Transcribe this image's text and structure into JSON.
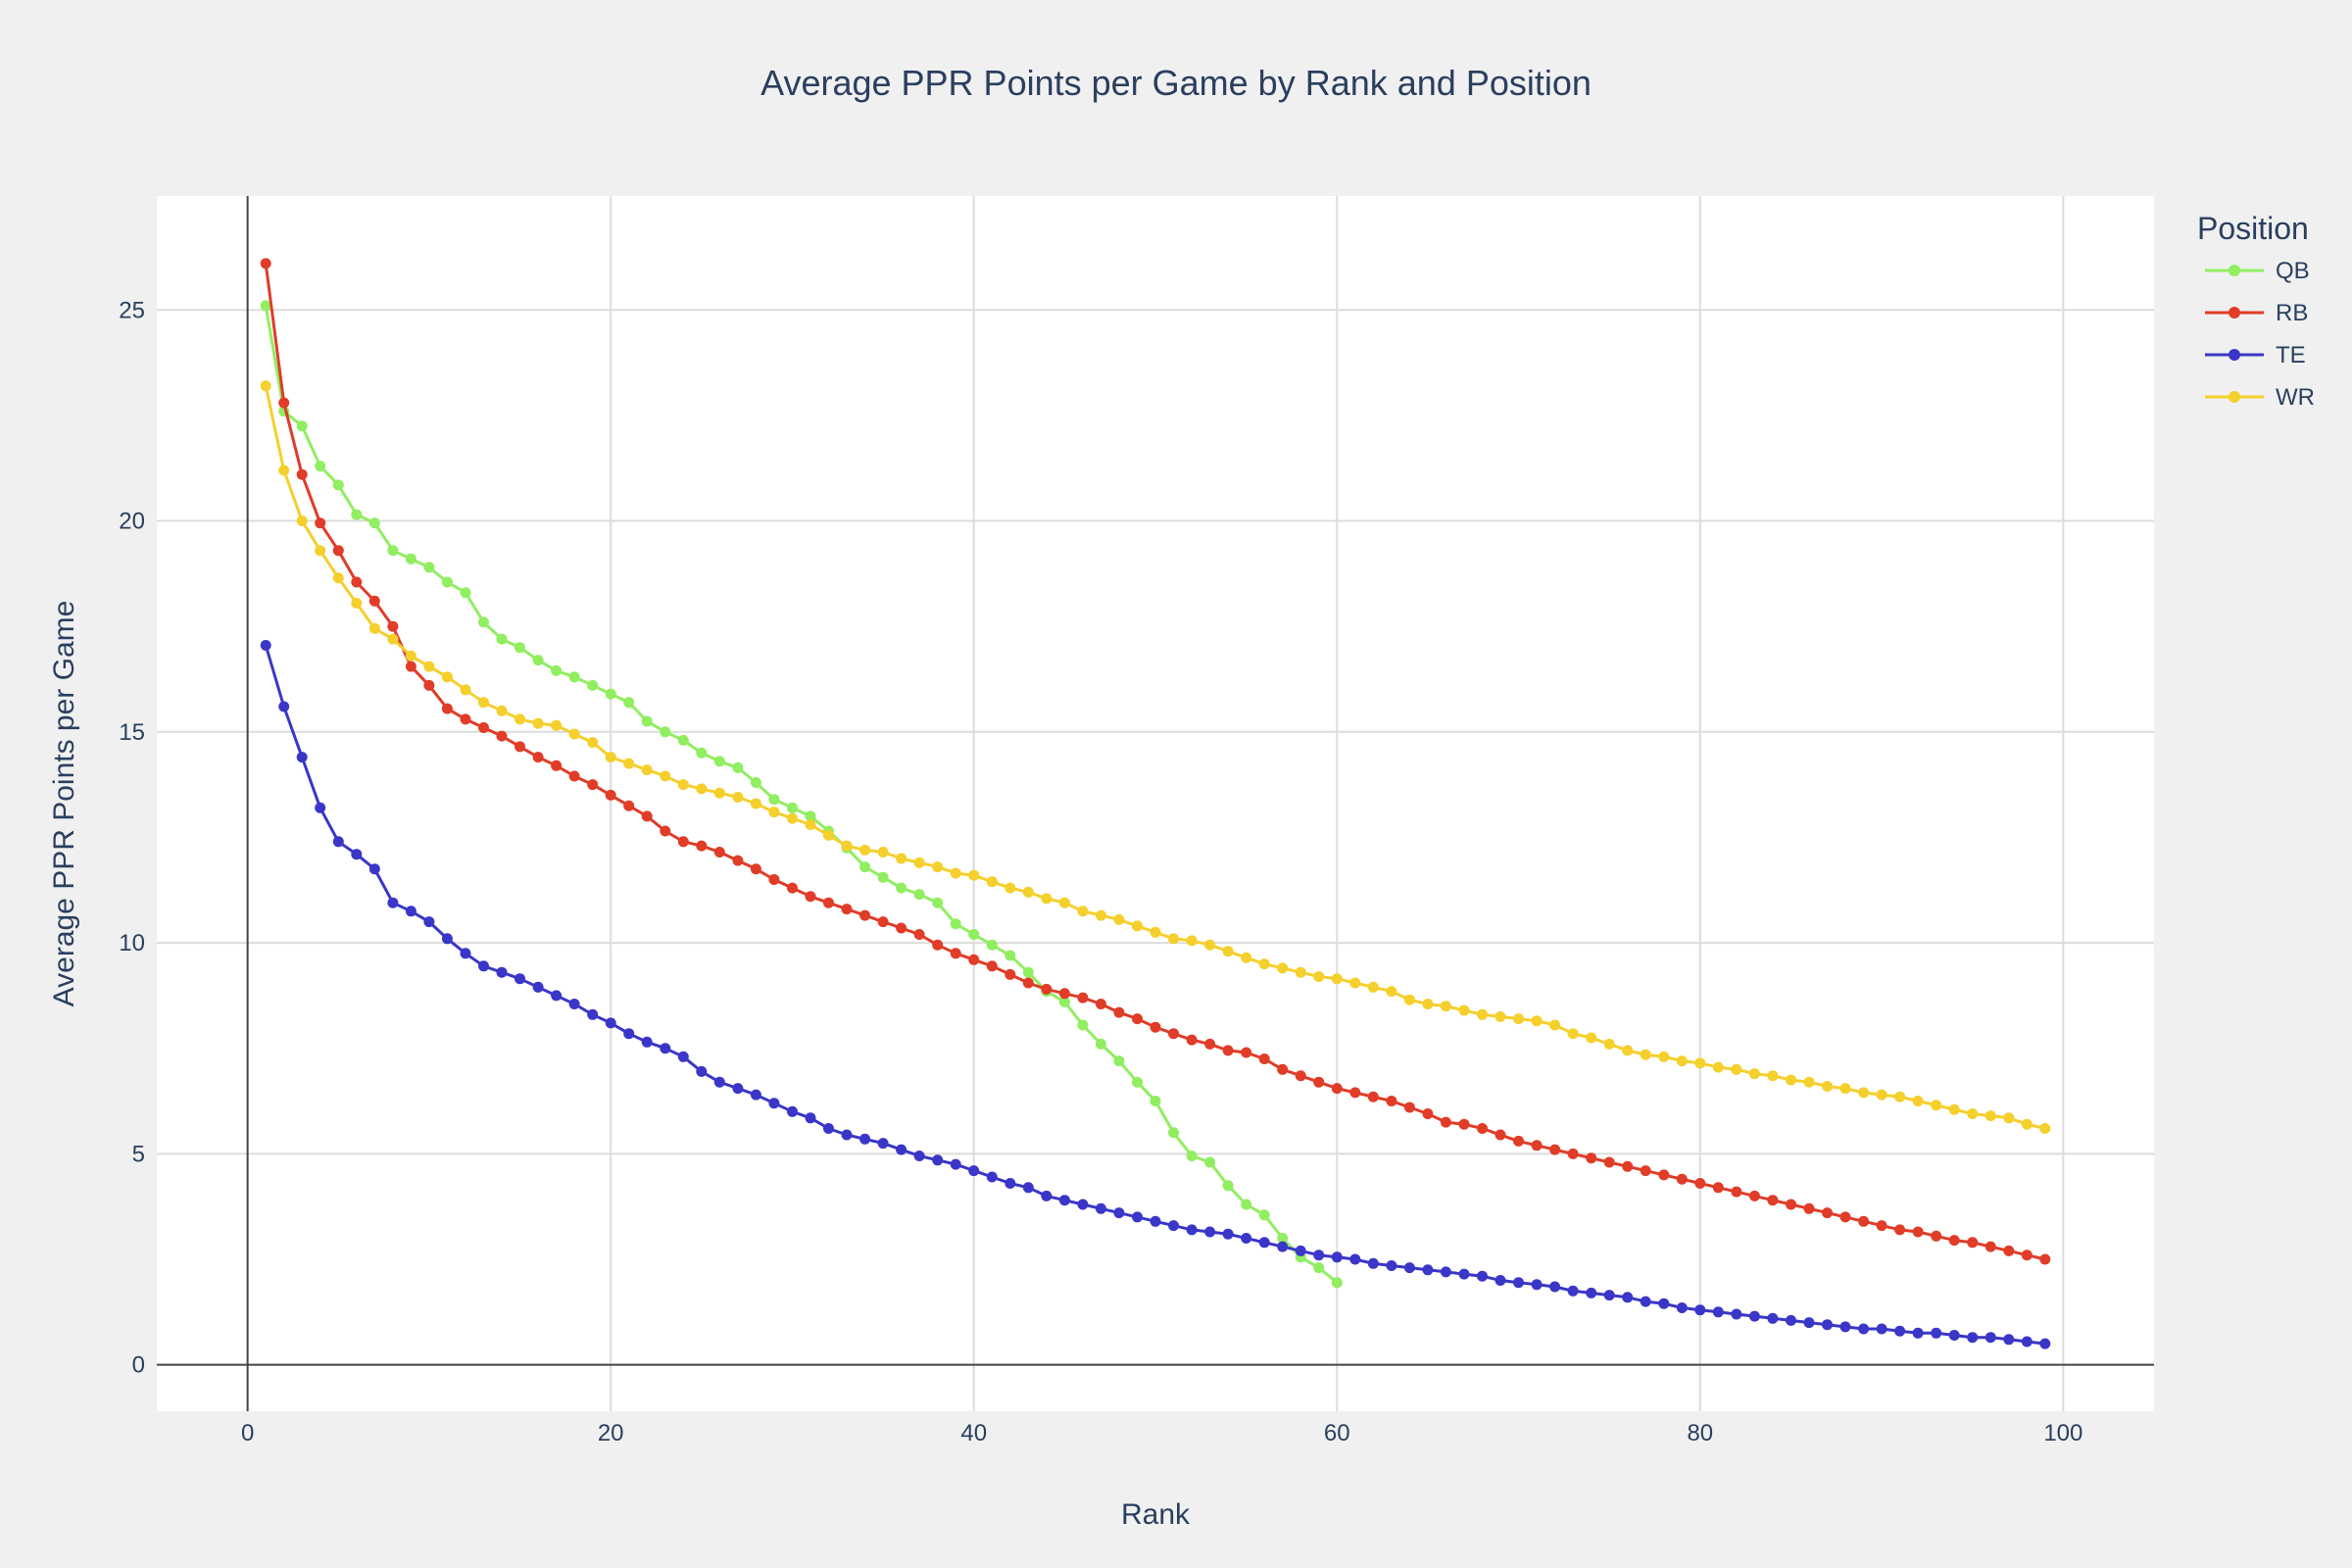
{
  "chart_data": {
    "type": "line",
    "title": "Average PPR Points per Game by Rank and Position",
    "xlabel": "Rank",
    "ylabel": "Average PPR Points per Game",
    "xlim": [
      -5,
      105
    ],
    "ylim": [
      -1.1,
      27.7
    ],
    "xticks": [
      0,
      20,
      40,
      60,
      80,
      100
    ],
    "yticks": [
      0,
      5,
      10,
      15,
      20,
      25
    ],
    "grid": true,
    "legend": {
      "title": "Position",
      "position": "top-right"
    },
    "series": [
      {
        "name": "QB",
        "color": "#90ee60",
        "x": [
          1,
          2,
          3,
          4,
          5,
          6,
          7,
          8,
          9,
          10,
          11,
          12,
          13,
          14,
          15,
          16,
          17,
          18,
          19,
          20,
          21,
          22,
          23,
          24,
          25,
          26,
          27,
          28,
          29,
          30,
          31,
          32,
          33,
          34,
          35,
          36,
          37,
          38,
          39,
          40,
          41,
          42,
          43,
          44,
          45,
          46,
          47,
          48,
          49,
          50,
          51,
          52,
          53,
          54,
          55,
          56,
          57,
          58,
          59,
          60
        ],
        "y": [
          25.1,
          22.6,
          22.25,
          21.3,
          20.85,
          20.15,
          19.95,
          19.3,
          19.1,
          18.9,
          18.55,
          18.3,
          17.6,
          17.2,
          17.0,
          16.7,
          16.45,
          16.3,
          16.1,
          15.9,
          15.7,
          15.25,
          15.0,
          14.8,
          14.5,
          14.3,
          14.15,
          13.8,
          13.4,
          13.2,
          13.0,
          12.65,
          12.25,
          11.8,
          11.55,
          11.3,
          11.15,
          10.95,
          10.45,
          10.2,
          9.95,
          9.7,
          9.3,
          8.85,
          8.6,
          8.05,
          7.6,
          7.2,
          6.7,
          6.25,
          5.5,
          4.95,
          4.8,
          4.25,
          3.8,
          3.55,
          3.0,
          2.55,
          2.3,
          1.95
        ]
      },
      {
        "name": "RB",
        "color": "#e03c28",
        "x": [
          1,
          2,
          3,
          4,
          5,
          6,
          7,
          8,
          9,
          10,
          11,
          12,
          13,
          14,
          15,
          16,
          17,
          18,
          19,
          20,
          21,
          22,
          23,
          24,
          25,
          26,
          27,
          28,
          29,
          30,
          31,
          32,
          33,
          34,
          35,
          36,
          37,
          38,
          39,
          40,
          41,
          42,
          43,
          44,
          45,
          46,
          47,
          48,
          49,
          50,
          51,
          52,
          53,
          54,
          55,
          56,
          57,
          58,
          59,
          60,
          61,
          62,
          63,
          64,
          65,
          66,
          67,
          68,
          69,
          70,
          71,
          72,
          73,
          74,
          75,
          76,
          77,
          78,
          79,
          80,
          81,
          82,
          83,
          84,
          85,
          86,
          87,
          88,
          89,
          90,
          91,
          92,
          93,
          94,
          95,
          96,
          97,
          98,
          99
        ],
        "y": [
          26.1,
          22.8,
          21.1,
          19.95,
          19.3,
          18.55,
          18.1,
          17.5,
          16.55,
          16.1,
          15.55,
          15.3,
          15.1,
          14.9,
          14.65,
          14.4,
          14.2,
          13.95,
          13.75,
          13.5,
          13.25,
          13.0,
          12.65,
          12.4,
          12.3,
          12.15,
          11.95,
          11.75,
          11.5,
          11.3,
          11.1,
          10.95,
          10.8,
          10.65,
          10.5,
          10.35,
          10.2,
          9.95,
          9.75,
          9.6,
          9.45,
          9.25,
          9.05,
          8.9,
          8.8,
          8.7,
          8.55,
          8.35,
          8.2,
          8.0,
          7.85,
          7.7,
          7.6,
          7.45,
          7.4,
          7.25,
          7.0,
          6.85,
          6.7,
          6.55,
          6.45,
          6.35,
          6.25,
          6.1,
          5.95,
          5.75,
          5.7,
          5.6,
          5.45,
          5.3,
          5.2,
          5.1,
          5.0,
          4.9,
          4.8,
          4.7,
          4.6,
          4.5,
          4.4,
          4.3,
          4.2,
          4.1,
          4.0,
          3.9,
          3.8,
          3.7,
          3.6,
          3.5,
          3.4,
          3.3,
          3.2,
          3.15,
          3.05,
          2.95,
          2.9,
          2.8,
          2.7,
          2.6,
          2.5
        ]
      },
      {
        "name": "TE",
        "color": "#3a36c8",
        "x": [
          1,
          2,
          3,
          4,
          5,
          6,
          7,
          8,
          9,
          10,
          11,
          12,
          13,
          14,
          15,
          16,
          17,
          18,
          19,
          20,
          21,
          22,
          23,
          24,
          25,
          26,
          27,
          28,
          29,
          30,
          31,
          32,
          33,
          34,
          35,
          36,
          37,
          38,
          39,
          40,
          41,
          42,
          43,
          44,
          45,
          46,
          47,
          48,
          49,
          50,
          51,
          52,
          53,
          54,
          55,
          56,
          57,
          58,
          59,
          60,
          61,
          62,
          63,
          64,
          65,
          66,
          67,
          68,
          69,
          70,
          71,
          72,
          73,
          74,
          75,
          76,
          77,
          78,
          79,
          80,
          81,
          82,
          83,
          84,
          85,
          86,
          87,
          88,
          89,
          90,
          91,
          92,
          93,
          94,
          95,
          96,
          97,
          98,
          99
        ],
        "y": [
          17.05,
          15.6,
          14.4,
          13.2,
          12.4,
          12.1,
          11.75,
          10.95,
          10.75,
          10.5,
          10.1,
          9.75,
          9.45,
          9.3,
          9.15,
          8.95,
          8.75,
          8.55,
          8.3,
          8.1,
          7.85,
          7.65,
          7.5,
          7.3,
          6.95,
          6.7,
          6.55,
          6.4,
          6.2,
          6.0,
          5.85,
          5.6,
          5.45,
          5.35,
          5.25,
          5.1,
          4.95,
          4.85,
          4.75,
          4.6,
          4.45,
          4.3,
          4.2,
          4.0,
          3.9,
          3.8,
          3.7,
          3.6,
          3.5,
          3.4,
          3.3,
          3.2,
          3.15,
          3.1,
          3.0,
          2.9,
          2.8,
          2.7,
          2.6,
          2.55,
          2.5,
          2.4,
          2.35,
          2.3,
          2.25,
          2.2,
          2.15,
          2.1,
          2.0,
          1.95,
          1.9,
          1.85,
          1.75,
          1.7,
          1.65,
          1.6,
          1.5,
          1.45,
          1.35,
          1.3,
          1.25,
          1.2,
          1.15,
          1.1,
          1.05,
          1.0,
          0.95,
          0.9,
          0.85,
          0.85,
          0.8,
          0.75,
          0.75,
          0.7,
          0.65,
          0.65,
          0.6,
          0.55,
          0.5
        ]
      },
      {
        "name": "WR",
        "color": "#f5cf2b",
        "x": [
          1,
          2,
          3,
          4,
          5,
          6,
          7,
          8,
          9,
          10,
          11,
          12,
          13,
          14,
          15,
          16,
          17,
          18,
          19,
          20,
          21,
          22,
          23,
          24,
          25,
          26,
          27,
          28,
          29,
          30,
          31,
          32,
          33,
          34,
          35,
          36,
          37,
          38,
          39,
          40,
          41,
          42,
          43,
          44,
          45,
          46,
          47,
          48,
          49,
          50,
          51,
          52,
          53,
          54,
          55,
          56,
          57,
          58,
          59,
          60,
          61,
          62,
          63,
          64,
          65,
          66,
          67,
          68,
          69,
          70,
          71,
          72,
          73,
          74,
          75,
          76,
          77,
          78,
          79,
          80,
          81,
          82,
          83,
          84,
          85,
          86,
          87,
          88,
          89,
          90,
          91,
          92,
          93,
          94,
          95,
          96,
          97,
          98,
          99
        ],
        "y": [
          23.2,
          21.2,
          20.0,
          19.3,
          18.65,
          18.05,
          17.45,
          17.2,
          16.8,
          16.55,
          16.3,
          16.0,
          15.7,
          15.5,
          15.3,
          15.2,
          15.15,
          14.95,
          14.75,
          14.4,
          14.25,
          14.1,
          13.95,
          13.75,
          13.65,
          13.55,
          13.45,
          13.3,
          13.1,
          12.95,
          12.8,
          12.55,
          12.3,
          12.2,
          12.15,
          12.0,
          11.9,
          11.8,
          11.65,
          11.6,
          11.45,
          11.3,
          11.2,
          11.05,
          10.95,
          10.75,
          10.65,
          10.55,
          10.4,
          10.25,
          10.1,
          10.05,
          9.95,
          9.8,
          9.65,
          9.5,
          9.4,
          9.3,
          9.2,
          9.15,
          9.05,
          8.95,
          8.85,
          8.65,
          8.55,
          8.5,
          8.4,
          8.3,
          8.25,
          8.2,
          8.15,
          8.05,
          7.85,
          7.75,
          7.6,
          7.45,
          7.35,
          7.3,
          7.2,
          7.15,
          7.05,
          7.0,
          6.9,
          6.85,
          6.75,
          6.7,
          6.6,
          6.55,
          6.45,
          6.4,
          6.35,
          6.25,
          6.15,
          6.05,
          5.95,
          5.9,
          5.85,
          5.7,
          5.6
        ]
      }
    ]
  }
}
